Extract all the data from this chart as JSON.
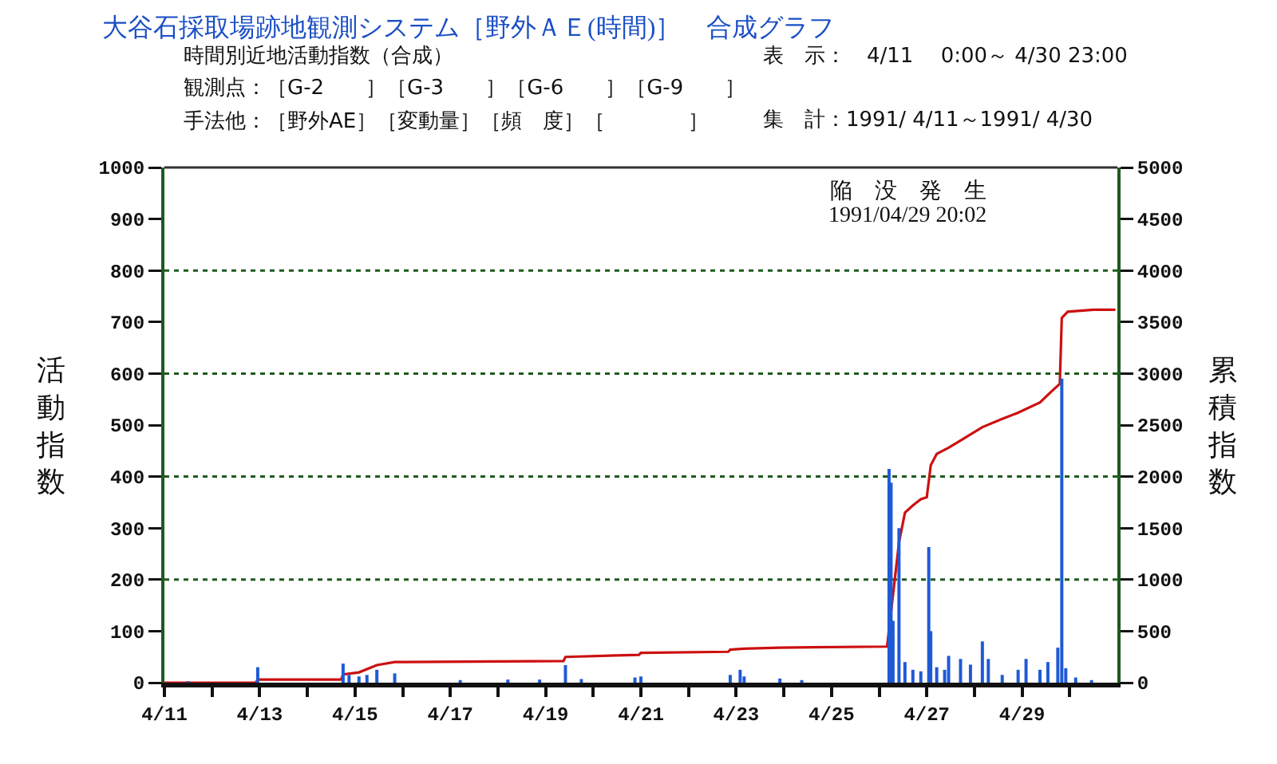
{
  "chart_data": {
    "type": "bar",
    "title": "大谷石採取場跡地観測システム［野外ＡＥ(時間)］　合成グラフ",
    "annotations": [
      "時間別近地活動指数（合成）",
      "表　示：　4/11　 0:00～ 4/30 23:00",
      "観測点：［G-2　　］［G-3　　］［G-6　　］［G-9　　］",
      "手法他：［野外AE］［変動量］［頻　度］［　　　　］",
      "集　計：1991/ 4/11～1991/ 4/30",
      "陥　没　発　生",
      "1991/04/29 20:02"
    ],
    "ylabel": "活動指数",
    "y2label": "累積指数",
    "series": [
      {
        "color": "#1f5ad6",
        "x": [
          "1991-04-11T12:00",
          "1991-04-12T23:00",
          "1991-04-14T18:00",
          "1991-04-14T21:00",
          "1991-04-15T02:00",
          "1991-04-15T06:00",
          "1991-04-15T11:00",
          "1991-04-15T20:00",
          "1991-04-17T05:00",
          "1991-04-18T05:00",
          "1991-04-18T21:00",
          "1991-04-19T10:00",
          "1991-04-19T18:00",
          "1991-04-20T21:00",
          "1991-04-21T00:00",
          "1991-04-22T21:00",
          "1991-04-23T02:00",
          "1991-04-23T04:00",
          "1991-04-23T22:00",
          "1991-04-24T09:00",
          "1991-04-26T05:00",
          "1991-04-26T06:00",
          "1991-04-26T07:00",
          "1991-04-26T10:00",
          "1991-04-26T13:00",
          "1991-04-26T17:00",
          "1991-04-26T21:00",
          "1991-04-27T01:00",
          "1991-04-27T02:00",
          "1991-04-27T05:00",
          "1991-04-27T09:00",
          "1991-04-27T11:00",
          "1991-04-27T17:00",
          "1991-04-27T22:00",
          "1991-04-28T04:00",
          "1991-04-28T07:00",
          "1991-04-28T14:00",
          "1991-04-28T22:00",
          "1991-04-29T02:00",
          "1991-04-29T09:00",
          "1991-04-29T13:00",
          "1991-04-29T18:00",
          "1991-04-29T20:00",
          "1991-04-29T22:00",
          "1991-04-30T03:00",
          "1991-04-30T11:00"
        ],
        "values": [
          3,
          30,
          37,
          15,
          12,
          15,
          25,
          18,
          5,
          6,
          6,
          34,
          7,
          10,
          12,
          15,
          25,
          12,
          8,
          5,
          415,
          388,
          120,
          300,
          40,
          25,
          22,
          263,
          100,
          30,
          25,
          52,
          46,
          35,
          80,
          46,
          15,
          25,
          46,
          25,
          40,
          68,
          590,
          28,
          10,
          5
        ]
      },
      {
        "type": "line",
        "axis": "y2",
        "color": "#cc1010",
        "x": [
          "1991-04-11T00:00",
          "1991-04-12T22:00",
          "1991-04-12T23:00",
          "1991-04-14T17:00",
          "1991-04-14T18:00",
          "1991-04-15T02:00",
          "1991-04-15T11:00",
          "1991-04-15T20:00",
          "1991-04-19T09:00",
          "1991-04-19T10:00",
          "1991-04-20T23:00",
          "1991-04-21T00:00",
          "1991-04-22T20:00",
          "1991-04-22T21:00",
          "1991-04-23T04:00",
          "1991-04-23T22:00",
          "1991-04-26T04:00",
          "1991-04-26T10:00",
          "1991-04-26T13:00",
          "1991-04-26T17:00",
          "1991-04-26T21:00",
          "1991-04-27T00:00",
          "1991-04-27T02:00",
          "1991-04-27T05:00",
          "1991-04-27T11:00",
          "1991-04-27T17:00",
          "1991-04-28T04:00",
          "1991-04-28T14:00",
          "1991-04-28T22:00",
          "1991-04-29T09:00",
          "1991-04-29T15:00",
          "1991-04-29T19:00",
          "1991-04-29T20:00",
          "1991-04-29T23:00",
          "1991-04-30T12:00",
          "1991-04-30T23:00"
        ],
        "values": [
          0,
          0,
          30,
          30,
          80,
          100,
          170,
          200,
          210,
          250,
          270,
          290,
          300,
          320,
          330,
          340,
          350,
          1360,
          1650,
          1720,
          1780,
          1800,
          2110,
          2220,
          2280,
          2350,
          2480,
          2560,
          2620,
          2720,
          2830,
          2900,
          3540,
          3600,
          3620,
          3620
        ]
      }
    ],
    "xlim": [
      "1991-04-11T00:00",
      "1991-05-01T00:00"
    ],
    "xticks": [
      {
        "value": "1991-04-11",
        "label": "4/11"
      },
      {
        "value": "1991-04-12",
        "label": null
      },
      {
        "value": "1991-04-13",
        "label": "4/13"
      },
      {
        "value": "1991-04-14",
        "label": null
      },
      {
        "value": "1991-04-15",
        "label": "4/15"
      },
      {
        "value": "1991-04-16",
        "label": null
      },
      {
        "value": "1991-04-17",
        "label": "4/17"
      },
      {
        "value": "1991-04-18",
        "label": null
      },
      {
        "value": "1991-04-19",
        "label": "4/19"
      },
      {
        "value": "1991-04-20",
        "label": null
      },
      {
        "value": "1991-04-21",
        "label": "4/21"
      },
      {
        "value": "1991-04-22",
        "label": null
      },
      {
        "value": "1991-04-23",
        "label": "4/23"
      },
      {
        "value": "1991-04-24",
        "label": null
      },
      {
        "value": "1991-04-25",
        "label": "4/25"
      },
      {
        "value": "1991-04-26",
        "label": null
      },
      {
        "value": "1991-04-27",
        "label": "4/27"
      },
      {
        "value": "1991-04-28",
        "label": null
      },
      {
        "value": "1991-04-29",
        "label": "4/29"
      },
      {
        "value": "1991-04-30",
        "label": null
      }
    ],
    "ylim": [
      0,
      1000
    ],
    "yticks": [
      0,
      100,
      200,
      300,
      400,
      500,
      600,
      700,
      800,
      900,
      1000
    ],
    "y2lim": [
      0,
      5000
    ],
    "y2ticks": [
      0,
      500,
      1000,
      1500,
      2000,
      2500,
      3000,
      3500,
      4000,
      4500,
      5000
    ],
    "ref_lines": [
      {
        "axis": "y",
        "value": 200,
        "color": "#1e5a1e",
        "line_style": "dotted"
      },
      {
        "axis": "y",
        "value": 400,
        "color": "#1e5a1e",
        "line_style": "dotted"
      },
      {
        "axis": "y",
        "value": 600,
        "color": "#1e5a1e",
        "line_style": "dotted"
      },
      {
        "axis": "y",
        "value": 800,
        "color": "#1e5a1e",
        "line_style": "dotted"
      }
    ]
  }
}
